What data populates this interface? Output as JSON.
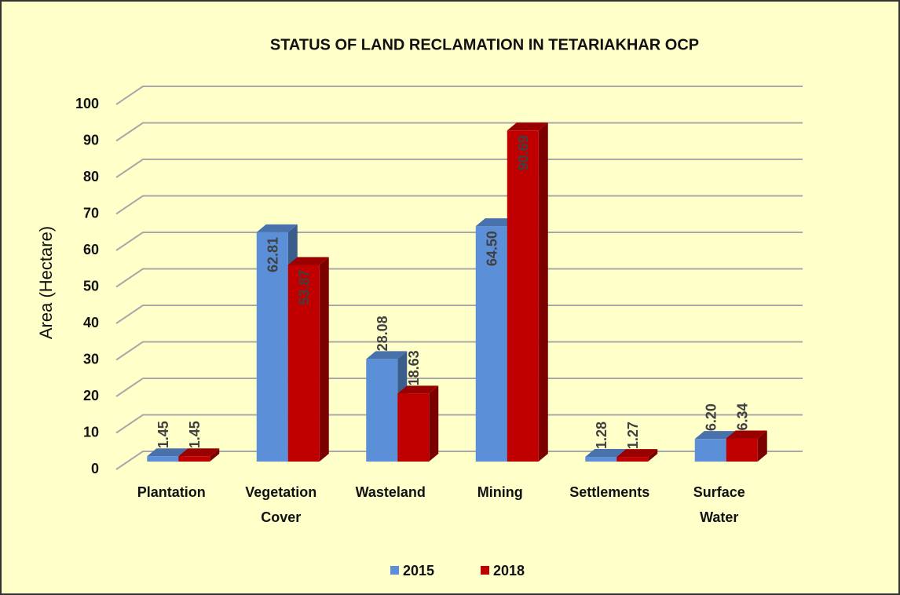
{
  "chart_data": {
    "type": "bar3d",
    "title": "STATUS OF  LAND RECLAMATION IN TETARIAKHAR OCP",
    "y_label": "Area (Hectare)",
    "categories": [
      "Plantation",
      "Vegetation Cover",
      "Wasteland",
      "Mining",
      "Settlements",
      "Surface Water"
    ],
    "series": [
      {
        "name": "2015",
        "color": "#5b8fd8",
        "values": [
          1.45,
          62.81,
          28.08,
          64.5,
          1.28,
          6.2
        ],
        "value_labels": [
          "1.45",
          "62.81",
          "28.08",
          "64.50",
          "1.28",
          "6.20"
        ]
      },
      {
        "name": "2018",
        "color": "#c00000",
        "values": [
          1.45,
          53.87,
          18.63,
          90.69,
          1.27,
          6.34
        ],
        "value_labels": [
          "1.45",
          "53.87",
          "18.63",
          "90.69",
          "1.27",
          "6.34"
        ]
      }
    ],
    "ylim": [
      0,
      100
    ],
    "yticks": [
      0,
      10,
      20,
      30,
      40,
      50,
      60,
      70,
      80,
      90,
      100
    ],
    "grid": true,
    "legend": "bottom"
  }
}
